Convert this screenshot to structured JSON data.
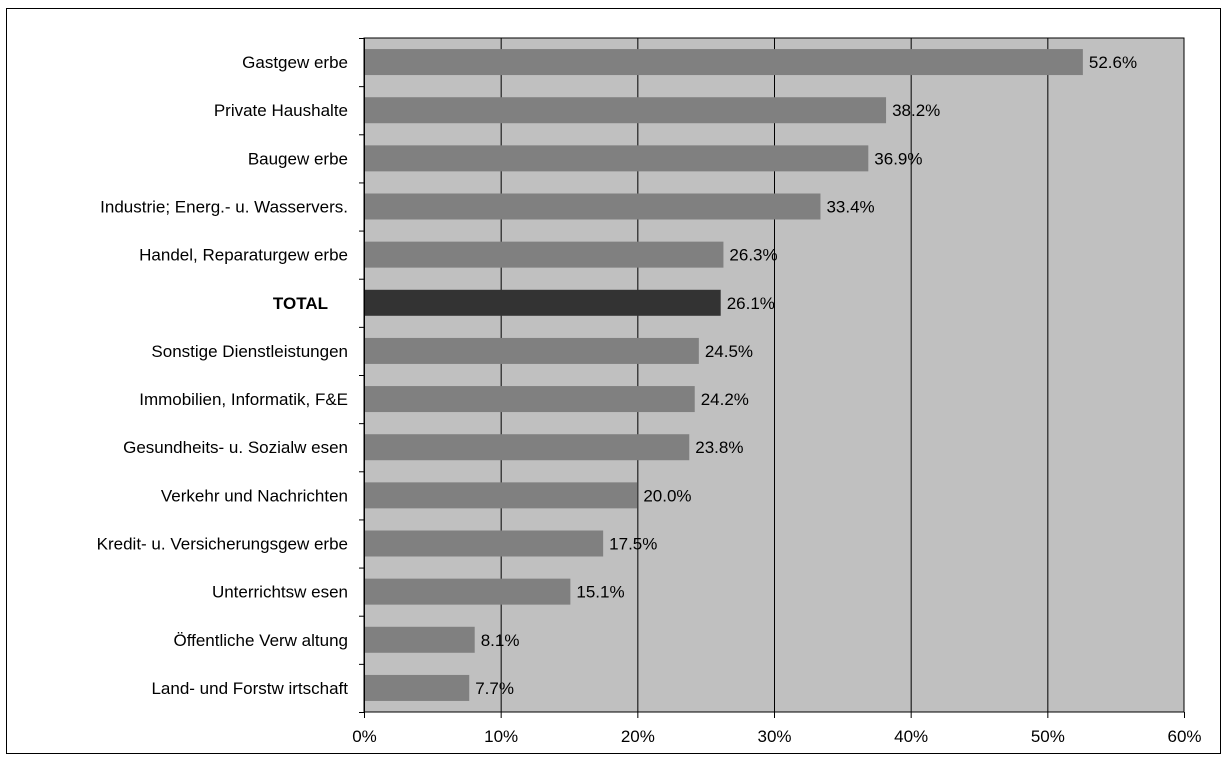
{
  "colors": {
    "plot_background": "#c0c0c0",
    "bar": "#808080",
    "bar_highlight": "#333333",
    "gridline": "#000000"
  },
  "chart_data": {
    "type": "bar",
    "orientation": "horizontal",
    "title": "",
    "xlabel": "",
    "ylabel": "",
    "xlim": [
      0,
      60
    ],
    "grid": true,
    "legend": "none",
    "x_ticks": [
      "0%",
      "10%",
      "20%",
      "30%",
      "40%",
      "50%",
      "60%"
    ],
    "x_tick_values": [
      0,
      10,
      20,
      30,
      40,
      50,
      60
    ],
    "categories": [
      "Gastgew erbe",
      "Private Haushalte",
      "Baugew erbe",
      "Industrie; Energ.- u. Wasservers.",
      "Handel, Reparaturgew erbe",
      "TOTAL",
      "Sonstige Dienstleistungen",
      "Immobilien, Informatik, F&E",
      "Gesundheits- u. Sozialw esen",
      "Verkehr und Nachrichten",
      "Kredit- u. Versicherungsgew erbe",
      "Unterrichtsw esen",
      "Öffentliche Verw altung",
      "Land- und Forstw irtschaft"
    ],
    "values": [
      52.6,
      38.2,
      36.9,
      33.4,
      26.3,
      26.1,
      24.5,
      24.2,
      23.8,
      20.0,
      17.5,
      15.1,
      8.1,
      7.7
    ],
    "value_labels": [
      "52.6%",
      "38.2%",
      "36.9%",
      "33.4%",
      "26.3%",
      "26.1%",
      "24.5%",
      "24.2%",
      "23.8%",
      "20.0%",
      "17.5%",
      "15.1%",
      "8.1%",
      "7.7%"
    ],
    "highlight_category": "TOTAL"
  }
}
